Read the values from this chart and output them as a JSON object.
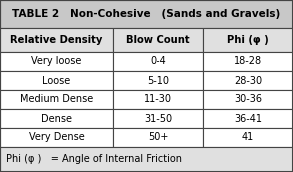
{
  "title": "TABLE 2   Non-Cohesive   (Sands and Gravels)",
  "headers": [
    "Relative Density",
    "Blow Count",
    "Phi (φ )"
  ],
  "rows": [
    [
      "Very loose",
      "0-4",
      "18-28"
    ],
    [
      "Loose",
      "5-10",
      "28-30"
    ],
    [
      "Medium Dense",
      "11-30",
      "30-36"
    ],
    [
      "Dense",
      "31-50",
      "36-41"
    ],
    [
      "Very Dense",
      "50+",
      "41"
    ]
  ],
  "footer": "Phi (φ )   = Angle of Internal Friction",
  "title_bg": "#c8c8c8",
  "header_bg": "#e0e0e0",
  "row_bg": "#ffffff",
  "footer_bg": "#e0e0e0",
  "border_color": "#444444",
  "text_color": "#000000",
  "fig_width": 2.93,
  "fig_height": 1.72,
  "dpi": 100
}
